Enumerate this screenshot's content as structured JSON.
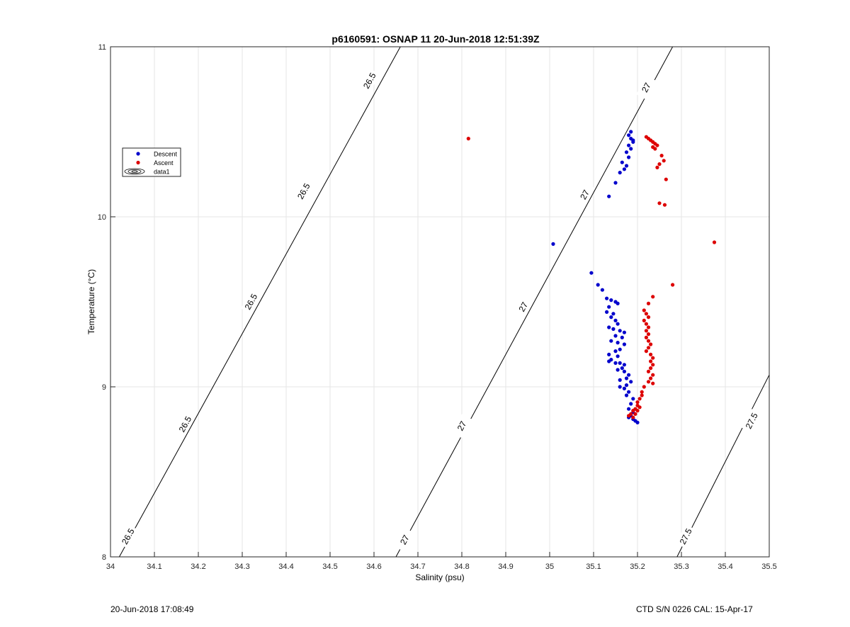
{
  "chart_data": {
    "type": "scatter",
    "title": "p6160591: OSNAP 11 20-Jun-2018 12:51:39Z",
    "xlabel": "Salinity (psu)",
    "ylabel": "Temperature (°C)",
    "xlim": [
      34,
      35.5
    ],
    "ylim": [
      8,
      11
    ],
    "xticks": [
      34,
      34.1,
      34.2,
      34.3,
      34.4,
      34.5,
      34.6,
      34.7,
      34.8,
      34.9,
      35,
      35.1,
      35.2,
      35.3,
      35.4,
      35.5
    ],
    "xtick_labels": [
      "34",
      "34.1",
      "34.2",
      "34.3",
      "34.4",
      "34.5",
      "34.6",
      "34.7",
      "34.8",
      "34.9",
      "35",
      "35.1",
      "35.2",
      "35.3",
      "35.4",
      "35.5"
    ],
    "yticks": [
      8,
      9,
      10,
      11
    ],
    "ytick_labels": [
      "8",
      "9",
      "10",
      "11"
    ],
    "grid": true,
    "legend_position": "upper-left",
    "legend": [
      {
        "label": "Descent",
        "marker": "dot",
        "color": "#0000cc"
      },
      {
        "label": "Ascent",
        "marker": "dot",
        "color": "#dd0000"
      },
      {
        "label": "data1",
        "marker": "contour",
        "color": "#000000"
      }
    ],
    "contours": [
      {
        "label": "26.5",
        "points": [
          [
            34.02,
            8.0
          ],
          [
            34.66,
            11.0
          ]
        ],
        "label_positions": [
          [
            34.04,
            8.12
          ],
          [
            34.17,
            8.78
          ],
          [
            34.32,
            9.5
          ],
          [
            34.44,
            10.15
          ],
          [
            34.59,
            10.8
          ]
        ]
      },
      {
        "label": "27",
        "points": [
          [
            34.65,
            8.0
          ],
          [
            35.28,
            11.0
          ]
        ],
        "label_positions": [
          [
            34.67,
            8.1
          ],
          [
            34.8,
            8.77
          ],
          [
            34.94,
            9.47
          ],
          [
            35.08,
            10.13
          ],
          [
            35.22,
            10.76
          ]
        ]
      },
      {
        "label": "27.5",
        "points": [
          [
            35.29,
            8.0
          ],
          [
            35.5,
            9.07
          ]
        ],
        "label_positions": [
          [
            35.31,
            8.12
          ],
          [
            35.46,
            8.8
          ]
        ]
      }
    ],
    "series": [
      {
        "name": "Descent",
        "color": "#0000cc",
        "points": [
          [
            35.008,
            9.84
          ],
          [
            35.095,
            9.67
          ],
          [
            35.11,
            9.6
          ],
          [
            35.12,
            9.57
          ],
          [
            35.13,
            9.52
          ],
          [
            35.14,
            9.51
          ],
          [
            35.15,
            9.5
          ],
          [
            35.155,
            9.49
          ],
          [
            35.135,
            9.47
          ],
          [
            35.13,
            9.44
          ],
          [
            35.145,
            9.43
          ],
          [
            35.14,
            9.41
          ],
          [
            35.15,
            9.39
          ],
          [
            35.155,
            9.37
          ],
          [
            35.135,
            9.35
          ],
          [
            35.145,
            9.34
          ],
          [
            35.16,
            9.33
          ],
          [
            35.17,
            9.32
          ],
          [
            35.15,
            9.3
          ],
          [
            35.165,
            9.29
          ],
          [
            35.14,
            9.27
          ],
          [
            35.155,
            9.26
          ],
          [
            35.17,
            9.25
          ],
          [
            35.16,
            9.22
          ],
          [
            35.15,
            9.21
          ],
          [
            35.135,
            9.19
          ],
          [
            35.155,
            9.18
          ],
          [
            35.14,
            9.16
          ],
          [
            35.135,
            9.15
          ],
          [
            35.15,
            9.14
          ],
          [
            35.16,
            9.14
          ],
          [
            35.17,
            9.13
          ],
          [
            35.165,
            9.11
          ],
          [
            35.155,
            9.1
          ],
          [
            35.17,
            9.09
          ],
          [
            35.18,
            9.07
          ],
          [
            35.175,
            9.05
          ],
          [
            35.16,
            9.04
          ],
          [
            35.185,
            9.03
          ],
          [
            35.175,
            9.01
          ],
          [
            35.16,
            9.0
          ],
          [
            35.17,
            8.99
          ],
          [
            35.18,
            8.97
          ],
          [
            35.175,
            8.95
          ],
          [
            35.19,
            8.93
          ],
          [
            35.185,
            8.9
          ],
          [
            35.18,
            8.87
          ],
          [
            35.19,
            8.85
          ],
          [
            35.185,
            8.83
          ],
          [
            35.18,
            8.82
          ],
          [
            35.19,
            8.81
          ],
          [
            35.195,
            8.8
          ],
          [
            35.2,
            8.79
          ],
          [
            35.135,
            10.12
          ],
          [
            35.15,
            10.2
          ],
          [
            35.16,
            10.26
          ],
          [
            35.17,
            10.28
          ],
          [
            35.165,
            10.32
          ],
          [
            35.175,
            10.3
          ],
          [
            35.18,
            10.35
          ],
          [
            35.175,
            10.38
          ],
          [
            35.185,
            10.4
          ],
          [
            35.18,
            10.42
          ],
          [
            35.19,
            10.44
          ],
          [
            35.185,
            10.46
          ],
          [
            35.18,
            10.48
          ],
          [
            35.185,
            10.5
          ],
          [
            35.19,
            10.45
          ]
        ]
      },
      {
        "name": "Ascent",
        "color": "#dd0000",
        "points": [
          [
            34.815,
            10.46
          ],
          [
            35.375,
            9.85
          ],
          [
            35.28,
            9.6
          ],
          [
            35.235,
            9.53
          ],
          [
            35.225,
            9.49
          ],
          [
            35.215,
            9.45
          ],
          [
            35.22,
            9.43
          ],
          [
            35.225,
            9.41
          ],
          [
            35.215,
            9.39
          ],
          [
            35.22,
            9.37
          ],
          [
            35.225,
            9.35
          ],
          [
            35.22,
            9.33
          ],
          [
            35.225,
            9.31
          ],
          [
            35.22,
            9.29
          ],
          [
            35.225,
            9.27
          ],
          [
            35.23,
            9.25
          ],
          [
            35.225,
            9.23
          ],
          [
            35.22,
            9.21
          ],
          [
            35.23,
            9.19
          ],
          [
            35.235,
            9.17
          ],
          [
            35.23,
            9.15
          ],
          [
            35.235,
            9.13
          ],
          [
            35.23,
            9.11
          ],
          [
            35.225,
            9.09
          ],
          [
            35.235,
            9.07
          ],
          [
            35.23,
            9.05
          ],
          [
            35.225,
            9.03
          ],
          [
            35.235,
            9.02
          ],
          [
            35.215,
            9.0
          ],
          [
            35.21,
            8.97
          ],
          [
            35.21,
            8.95
          ],
          [
            35.205,
            8.93
          ],
          [
            35.2,
            8.91
          ],
          [
            35.2,
            8.89
          ],
          [
            35.195,
            8.87
          ],
          [
            35.19,
            8.86
          ],
          [
            35.185,
            8.84
          ],
          [
            35.18,
            8.83
          ],
          [
            35.19,
            8.82
          ],
          [
            35.195,
            8.84
          ],
          [
            35.2,
            8.86
          ],
          [
            35.205,
            8.88
          ],
          [
            35.22,
            10.47
          ],
          [
            35.225,
            10.46
          ],
          [
            35.23,
            10.45
          ],
          [
            35.235,
            10.44
          ],
          [
            35.24,
            10.43
          ],
          [
            35.245,
            10.42
          ],
          [
            35.235,
            10.41
          ],
          [
            35.24,
            10.4
          ],
          [
            35.255,
            10.36
          ],
          [
            35.26,
            10.33
          ],
          [
            35.25,
            10.31
          ],
          [
            35.245,
            10.29
          ],
          [
            35.265,
            10.22
          ],
          [
            35.25,
            10.08
          ],
          [
            35.262,
            10.07
          ]
        ]
      }
    ]
  },
  "footer": {
    "timestamp": "20-Jun-2018 17:08:49",
    "instrument": "CTD S/N 0226  CAL: 15-Apr-17"
  }
}
